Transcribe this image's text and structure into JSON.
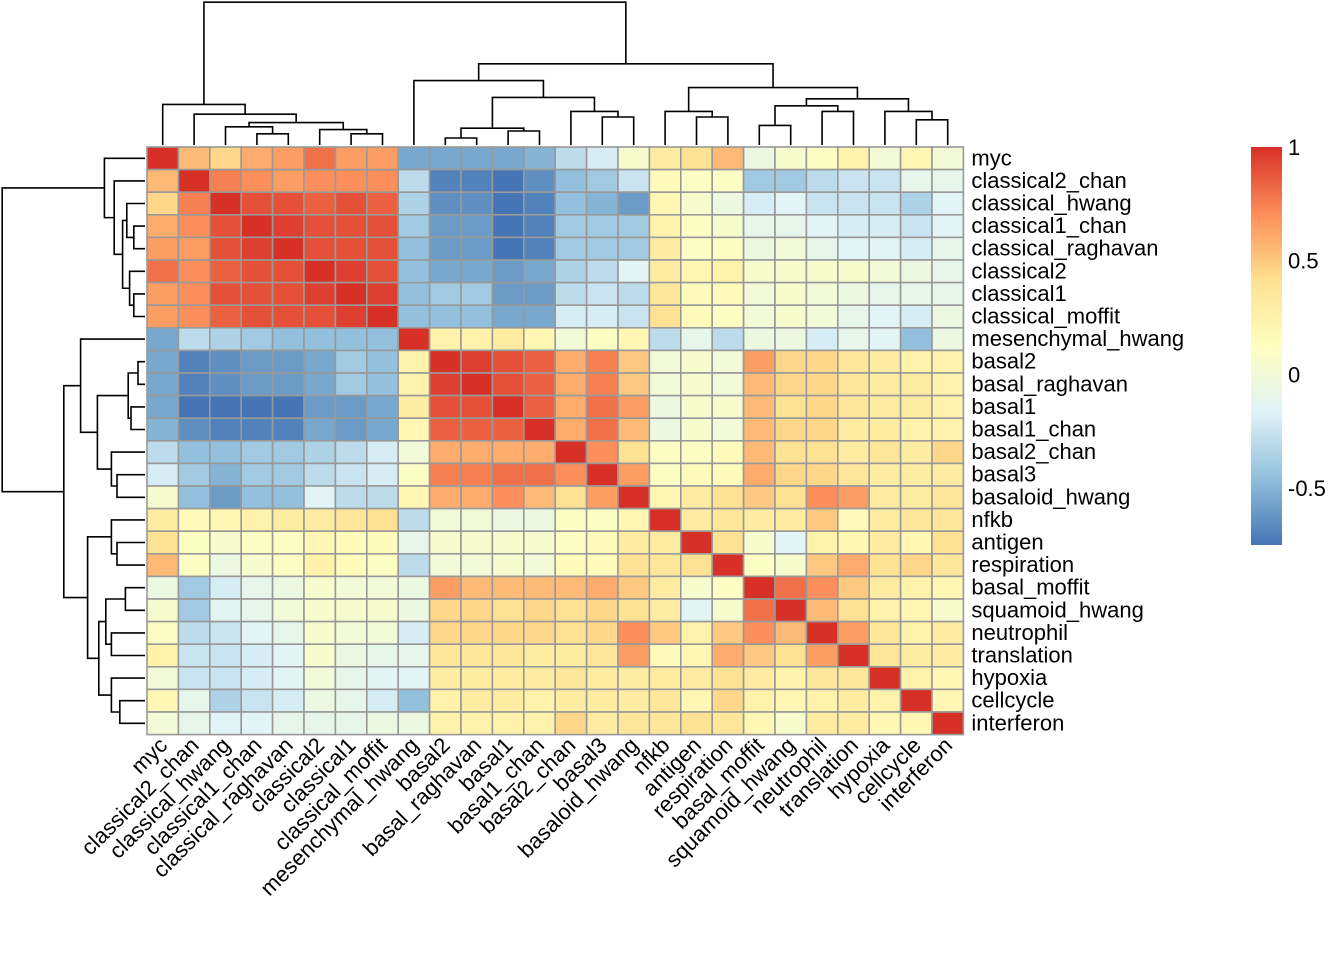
{
  "chart_data": {
    "type": "heatmap",
    "title": "",
    "labels": [
      "myc",
      "classical2_chan",
      "classical_hwang",
      "classical1_chan",
      "classical_raghavan",
      "classical2",
      "classical1",
      "classical_moffit",
      "mesenchymal_hwang",
      "basal2",
      "basal_raghavan",
      "basal1",
      "basal1_chan",
      "basal2_chan",
      "basal3",
      "basaloid_hwang",
      "nfkb",
      "antigen",
      "respiration",
      "basal_moffit",
      "squamoid_hwang",
      "neutrophil",
      "translation",
      "hypoxia",
      "cellcycle",
      "interferon"
    ],
    "values": [
      [
        1.0,
        0.55,
        0.45,
        0.6,
        0.65,
        0.8,
        0.65,
        0.65,
        -0.55,
        -0.55,
        -0.55,
        -0.55,
        -0.5,
        -0.3,
        -0.2,
        0.05,
        0.3,
        0.4,
        0.55,
        -0.05,
        0.05,
        0.1,
        0.25,
        0.0,
        0.2,
        0.0
      ],
      [
        0.55,
        1.0,
        0.75,
        0.7,
        0.65,
        0.7,
        0.7,
        0.7,
        -0.3,
        -0.7,
        -0.7,
        -0.75,
        -0.65,
        -0.45,
        -0.4,
        -0.25,
        0.15,
        0.1,
        0.1,
        -0.4,
        -0.4,
        -0.3,
        -0.25,
        -0.25,
        -0.1,
        -0.1
      ],
      [
        0.45,
        0.75,
        1.0,
        0.9,
        0.9,
        0.85,
        0.9,
        0.85,
        -0.35,
        -0.65,
        -0.65,
        -0.8,
        -0.7,
        -0.45,
        -0.5,
        -0.6,
        0.2,
        0.05,
        -0.05,
        -0.2,
        -0.15,
        -0.25,
        -0.25,
        -0.25,
        -0.35,
        -0.15
      ],
      [
        0.6,
        0.7,
        0.9,
        1.0,
        0.95,
        0.9,
        0.9,
        0.9,
        -0.4,
        -0.6,
        -0.6,
        -0.8,
        -0.7,
        -0.4,
        -0.4,
        -0.4,
        0.25,
        0.1,
        0.05,
        -0.1,
        -0.1,
        -0.15,
        -0.2,
        -0.2,
        -0.25,
        -0.15
      ],
      [
        0.65,
        0.65,
        0.9,
        0.95,
        1.0,
        0.9,
        0.9,
        0.9,
        -0.45,
        -0.6,
        -0.6,
        -0.8,
        -0.7,
        -0.4,
        -0.4,
        -0.4,
        0.3,
        0.1,
        0.1,
        -0.05,
        0.0,
        -0.1,
        -0.15,
        -0.15,
        -0.2,
        -0.1
      ],
      [
        0.8,
        0.7,
        0.85,
        0.9,
        0.9,
        1.0,
        0.95,
        0.9,
        -0.45,
        -0.55,
        -0.55,
        -0.6,
        -0.55,
        -0.35,
        -0.3,
        -0.15,
        0.3,
        0.2,
        0.25,
        0.05,
        0.05,
        0.05,
        0.05,
        0.0,
        -0.05,
        -0.1
      ],
      [
        0.65,
        0.7,
        0.9,
        0.9,
        0.9,
        0.95,
        1.0,
        0.95,
        -0.45,
        -0.4,
        -0.4,
        -0.6,
        -0.6,
        -0.3,
        -0.25,
        -0.3,
        0.35,
        0.15,
        0.15,
        0.0,
        0.05,
        0.0,
        -0.05,
        -0.1,
        -0.1,
        -0.1
      ],
      [
        0.65,
        0.7,
        0.85,
        0.9,
        0.9,
        0.9,
        0.95,
        1.0,
        -0.45,
        -0.45,
        -0.45,
        -0.55,
        -0.55,
        -0.2,
        -0.2,
        -0.25,
        0.4,
        0.15,
        0.1,
        0.0,
        0.05,
        0.0,
        -0.1,
        -0.15,
        -0.2,
        -0.05
      ],
      [
        -0.55,
        -0.3,
        -0.35,
        -0.4,
        -0.45,
        -0.45,
        -0.45,
        -0.45,
        1.0,
        0.25,
        0.25,
        0.3,
        0.2,
        0.0,
        0.1,
        0.2,
        -0.3,
        -0.1,
        -0.3,
        -0.05,
        -0.05,
        -0.2,
        -0.1,
        -0.15,
        -0.45,
        -0.05
      ],
      [
        -0.55,
        -0.7,
        -0.65,
        -0.6,
        -0.6,
        -0.55,
        -0.4,
        -0.45,
        0.25,
        1.0,
        0.95,
        0.9,
        0.85,
        0.6,
        0.75,
        0.5,
        0.0,
        0.05,
        0.0,
        0.65,
        0.45,
        0.45,
        0.35,
        0.3,
        0.25,
        0.25
      ],
      [
        -0.55,
        -0.7,
        -0.65,
        -0.6,
        -0.6,
        -0.55,
        -0.4,
        -0.45,
        0.25,
        0.95,
        1.0,
        0.9,
        0.85,
        0.6,
        0.75,
        0.5,
        0.0,
        0.05,
        0.0,
        0.55,
        0.45,
        0.45,
        0.35,
        0.3,
        0.3,
        0.25
      ],
      [
        -0.55,
        -0.75,
        -0.8,
        -0.8,
        -0.8,
        -0.6,
        -0.6,
        -0.55,
        0.3,
        0.9,
        0.9,
        1.0,
        0.85,
        0.6,
        0.8,
        0.65,
        -0.05,
        0.05,
        0.05,
        0.55,
        0.4,
        0.45,
        0.35,
        0.3,
        0.3,
        0.25
      ],
      [
        -0.5,
        -0.65,
        -0.7,
        -0.7,
        -0.7,
        -0.55,
        -0.6,
        -0.55,
        0.2,
        0.85,
        0.85,
        0.85,
        1.0,
        0.6,
        0.8,
        0.55,
        -0.05,
        0.05,
        0.0,
        0.55,
        0.45,
        0.45,
        0.3,
        0.3,
        0.25,
        0.25
      ],
      [
        -0.3,
        -0.45,
        -0.45,
        -0.4,
        -0.4,
        -0.35,
        -0.3,
        -0.2,
        0.0,
        0.6,
        0.6,
        0.6,
        0.6,
        1.0,
        0.7,
        0.4,
        0.1,
        0.1,
        0.15,
        0.55,
        0.4,
        0.4,
        0.3,
        0.35,
        0.3,
        0.45
      ],
      [
        -0.2,
        -0.4,
        -0.5,
        -0.4,
        -0.4,
        -0.3,
        -0.25,
        -0.2,
        0.1,
        0.75,
        0.75,
        0.8,
        0.8,
        0.7,
        1.0,
        0.65,
        0.1,
        0.15,
        0.15,
        0.6,
        0.45,
        0.45,
        0.35,
        0.3,
        0.3,
        0.3
      ],
      [
        0.05,
        -0.45,
        -0.6,
        -0.45,
        -0.45,
        -0.15,
        -0.3,
        -0.3,
        0.2,
        0.6,
        0.6,
        0.7,
        0.55,
        0.4,
        0.65,
        1.0,
        0.2,
        0.3,
        0.4,
        0.5,
        0.4,
        0.7,
        0.65,
        0.3,
        0.3,
        0.35
      ],
      [
        0.3,
        0.15,
        0.2,
        0.25,
        0.3,
        0.3,
        0.35,
        0.4,
        -0.3,
        0.0,
        0.0,
        -0.05,
        -0.05,
        0.1,
        0.1,
        0.2,
        1.0,
        0.3,
        0.35,
        0.3,
        0.3,
        0.5,
        0.15,
        0.3,
        0.35,
        0.35
      ],
      [
        0.4,
        0.1,
        0.05,
        0.1,
        0.1,
        0.2,
        0.15,
        0.15,
        -0.1,
        0.05,
        0.05,
        0.05,
        0.05,
        0.1,
        0.15,
        0.3,
        0.3,
        1.0,
        0.4,
        0.05,
        -0.15,
        0.25,
        0.2,
        0.3,
        0.2,
        0.4
      ],
      [
        0.55,
        0.1,
        -0.05,
        0.05,
        0.1,
        0.25,
        0.15,
        0.1,
        -0.3,
        0.0,
        0.0,
        0.05,
        0.0,
        0.15,
        0.15,
        0.4,
        0.35,
        0.4,
        1.0,
        0.1,
        0.05,
        0.5,
        0.6,
        0.4,
        0.45,
        0.35
      ],
      [
        -0.05,
        -0.4,
        -0.2,
        -0.1,
        -0.05,
        0.05,
        0.0,
        0.0,
        -0.05,
        0.65,
        0.55,
        0.55,
        0.55,
        0.55,
        0.6,
        0.5,
        0.3,
        0.05,
        0.1,
        1.0,
        0.8,
        0.7,
        0.5,
        0.3,
        0.25,
        0.2
      ],
      [
        0.05,
        -0.4,
        -0.15,
        -0.1,
        0.0,
        0.05,
        0.05,
        0.05,
        -0.05,
        0.45,
        0.45,
        0.4,
        0.45,
        0.4,
        0.45,
        0.4,
        0.3,
        -0.15,
        0.05,
        0.8,
        1.0,
        0.55,
        0.4,
        0.25,
        0.2,
        0.05
      ],
      [
        0.1,
        -0.3,
        -0.25,
        -0.15,
        -0.1,
        0.05,
        0.0,
        0.0,
        -0.2,
        0.45,
        0.45,
        0.45,
        0.45,
        0.4,
        0.45,
        0.7,
        0.5,
        0.25,
        0.5,
        0.7,
        0.55,
        1.0,
        0.65,
        0.35,
        0.25,
        0.3
      ],
      [
        0.25,
        -0.25,
        -0.25,
        -0.2,
        -0.15,
        0.05,
        -0.05,
        -0.1,
        -0.1,
        0.35,
        0.35,
        0.35,
        0.3,
        0.3,
        0.35,
        0.65,
        0.15,
        0.2,
        0.6,
        0.5,
        0.4,
        0.65,
        1.0,
        0.35,
        0.3,
        0.3
      ],
      [
        0.0,
        -0.25,
        -0.25,
        -0.2,
        -0.15,
        0.0,
        -0.1,
        -0.15,
        -0.15,
        0.3,
        0.3,
        0.3,
        0.3,
        0.35,
        0.3,
        0.3,
        0.3,
        0.3,
        0.4,
        0.3,
        0.25,
        0.35,
        0.35,
        1.0,
        0.25,
        0.2
      ],
      [
        0.2,
        -0.1,
        -0.35,
        -0.25,
        -0.2,
        -0.05,
        -0.1,
        -0.2,
        -0.45,
        0.25,
        0.3,
        0.3,
        0.25,
        0.3,
        0.3,
        0.3,
        0.35,
        0.2,
        0.45,
        0.25,
        0.2,
        0.25,
        0.3,
        0.25,
        1.0,
        0.2
      ],
      [
        0.0,
        -0.1,
        -0.15,
        -0.15,
        -0.1,
        -0.1,
        -0.1,
        -0.05,
        -0.05,
        0.25,
        0.25,
        0.25,
        0.25,
        0.45,
        0.3,
        0.35,
        0.35,
        0.4,
        0.35,
        0.2,
        0.05,
        0.3,
        0.3,
        0.2,
        0.2,
        1.0
      ]
    ],
    "legend": {
      "ticks": [
        1,
        0.5,
        0,
        -0.5
      ],
      "tick_labels": [
        "1",
        "0.5",
        "0",
        "-0.5"
      ],
      "min": -0.75,
      "max": 1.0,
      "colors": [
        "#4575b4",
        "#91bfdb",
        "#e0f3f8",
        "#ffffbf",
        "#fee090",
        "#fc8d59",
        "#d73027"
      ]
    },
    "grid_color": "#999999",
    "dendrogram_color": "#000000"
  }
}
